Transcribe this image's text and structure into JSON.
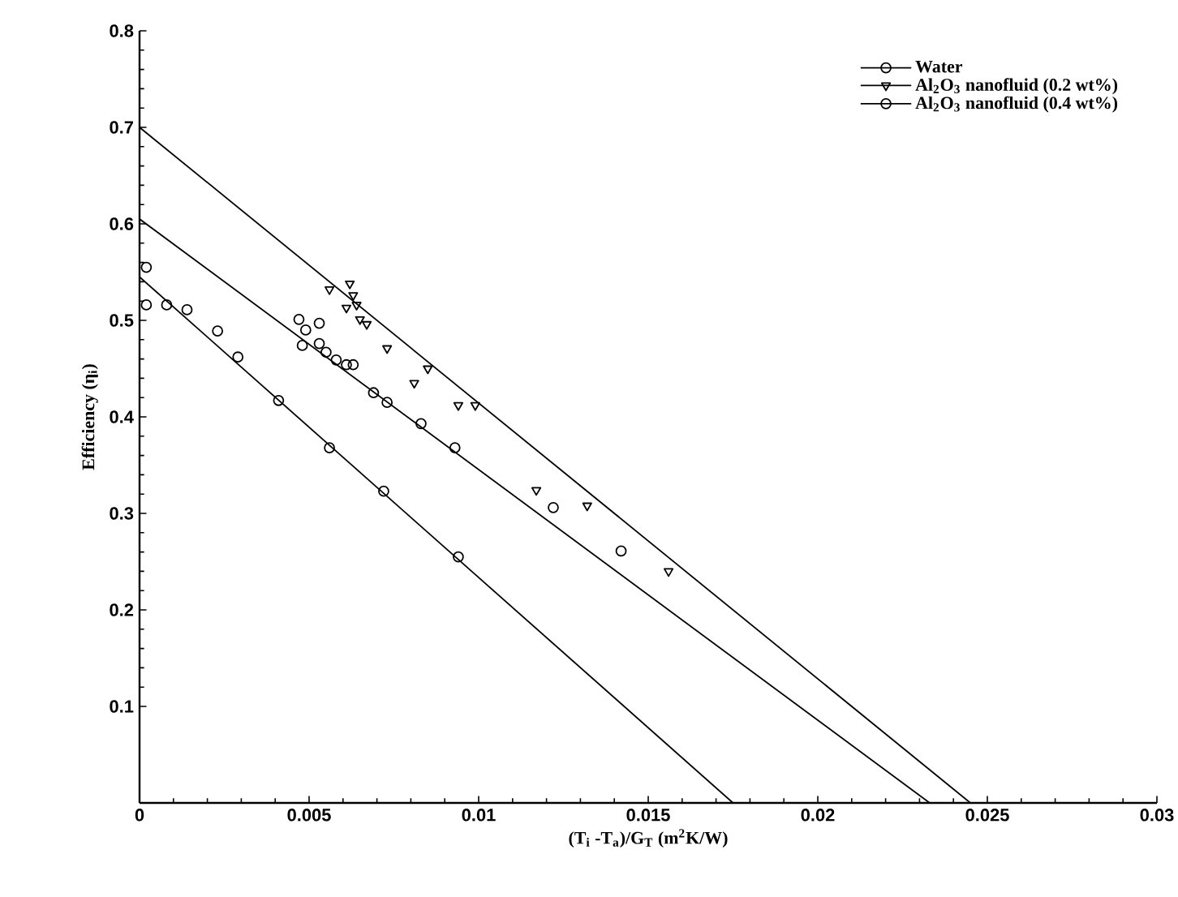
{
  "chart_data": {
    "type": "scatter",
    "xlabel": "(T$_{i}$ -T$_{a}$)/G$_{T}$ (m$^{2}$K/W)",
    "ylabel": "Efficiency (η$_{i}$)",
    "xlim": [
      0,
      0.03
    ],
    "ylim": [
      0,
      0.8
    ],
    "xticks": [
      0,
      0.005,
      0.01,
      0.015,
      0.02,
      0.025,
      0.03
    ],
    "yticks": [
      0.1,
      0.2,
      0.3,
      0.4,
      0.5,
      0.6,
      0.7,
      0.8
    ],
    "legend": "top right",
    "grid": false,
    "series": [
      {
        "name": "Water",
        "color": "#000000",
        "marker": "circle",
        "x": [
          0.0002,
          0.0002,
          0.0008,
          0.0014,
          0.0023,
          0.0029,
          0.0041,
          0.0056,
          0.0072,
          0.0094
        ],
        "values": [
          0.555,
          0.516,
          0.516,
          0.511,
          0.489,
          0.462,
          0.417,
          0.368,
          0.323,
          0.255
        ]
      },
      {
        "name": "Al$_{2}$O$_{3}$ nanofluid (0.2 wt%)",
        "color": "#000000",
        "marker": "triangle",
        "x": [
          0.0056,
          0.0062,
          0.0063,
          0.0061,
          0.0064,
          0.0065,
          0.0067,
          0.0073,
          0.0081,
          0.0085,
          0.0094,
          0.0099,
          0.0117,
          0.0132,
          0.0156
        ],
        "values": [
          0.532,
          0.538,
          0.526,
          0.513,
          0.516,
          0.501,
          0.496,
          0.471,
          0.435,
          0.45,
          0.412,
          0.412,
          0.324,
          0.308,
          0.24
        ]
      },
      {
        "name": "Al$_{2}$O$_{3}$ nanofluid (0.4 wt%)",
        "color": "#000000",
        "marker": "circle",
        "x": [
          0.0047,
          0.0053,
          0.0049,
          0.0048,
          0.0053,
          0.0055,
          0.0058,
          0.0061,
          0.0063,
          0.0069,
          0.0073,
          0.0083,
          0.0093,
          0.0122,
          0.0142
        ],
        "values": [
          0.501,
          0.497,
          0.49,
          0.474,
          0.476,
          0.467,
          0.459,
          0.454,
          0.454,
          0.425,
          0.415,
          0.393,
          0.368,
          0.306,
          0.261
        ]
      },
      {
        "type": "line",
        "color": "#000000",
        "marker": "none",
        "x": [
          0,
          0.0175
        ],
        "values": [
          0.545,
          0
        ]
      },
      {
        "type": "line",
        "color": "#000000",
        "marker": "none",
        "x": [
          0,
          0.0245
        ],
        "values": [
          0.7,
          0
        ]
      },
      {
        "type": "line",
        "color": "#000000",
        "marker": "none",
        "x": [
          0,
          0.0233
        ],
        "values": [
          0.605,
          0
        ]
      }
    ]
  }
}
